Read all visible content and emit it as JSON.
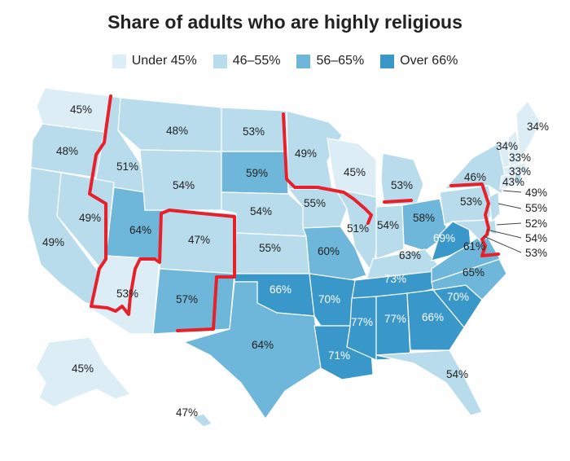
{
  "title": "Share of adults who are highly religious",
  "legend": [
    {
      "label": "Under 45%",
      "color": "#dcedf6"
    },
    {
      "label": "46–55%",
      "color": "#b9dcec"
    },
    {
      "label": "56–65%",
      "color": "#6fb7da"
    },
    {
      "label": "Over 66%",
      "color": "#3a97c9"
    }
  ],
  "labels": {
    "wa": "45%",
    "or": "48%",
    "ca": "49%",
    "id": "51%",
    "nv": "49%",
    "ut": "64%",
    "az": "53%",
    "mt": "48%",
    "wy": "54%",
    "co": "47%",
    "nm": "57%",
    "nd": "53%",
    "sd": "59%",
    "ne": "54%",
    "ks": "55%",
    "ok": "66%",
    "tx": "64%",
    "mn": "49%",
    "ia": "55%",
    "mo": "60%",
    "ar": "70%",
    "la": "71%",
    "wi": "45%",
    "il": "51%",
    "mi": "53%",
    "in": "54%",
    "oh": "58%",
    "ky": "63%",
    "tn": "73%",
    "ms": "77%",
    "al": "77%",
    "ga": "66%",
    "fl": "54%",
    "sc": "70%",
    "nc": "65%",
    "va": "61%",
    "wv": "69%",
    "pa": "53%",
    "ny": "46%",
    "me": "34%",
    "vt": "34%",
    "nh": "33%",
    "ma": "33%",
    "ct": "43%",
    "ri": "49%",
    "nj": "55%",
    "de": "52%",
    "md": "54%",
    "dc": "53%",
    "ak": "45%",
    "hi": "47%"
  }
}
